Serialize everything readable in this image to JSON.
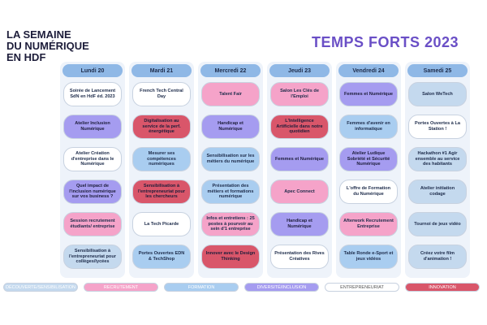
{
  "header": {
    "title_lines": [
      "LA SEMAINE",
      "DU NUMÉRIQUE",
      "EN HDF"
    ],
    "subtitle": "TEMPS FORTS 2023"
  },
  "days": [
    {
      "label": "Lundi 20",
      "events": [
        {
          "text": "Soirée de Lancement SdN en HdF éd. 2023",
          "color": "#ffffff"
        },
        {
          "text": "Atelier Inclusion Numérique",
          "color": "#a59cf0"
        },
        {
          "text": "Atelier Création d'entreprise dans le Numérique",
          "color": "#ffffff"
        },
        {
          "text": "Quel impact de l'inclusion numérique sur vos business ?",
          "color": "#a59cf0"
        },
        {
          "text": "Session recrutement étudiants/ entreprise",
          "color": "#f5a3c9"
        },
        {
          "text": "Sensibilisation à l'entrepreneuriat pour collèges/lycées",
          "color": "#c4d9ee"
        }
      ]
    },
    {
      "label": "Mardi 21",
      "events": [
        {
          "text": "French Tech Central Day",
          "color": "#ffffff"
        },
        {
          "text": "Digitalisation au service de la perf. énergétique",
          "color": "#d9566a"
        },
        {
          "text": "Mesurer ses compétences numériques",
          "color": "#a9cdf0"
        },
        {
          "text": "Sensibilisation à l'entrepreneuriat pour les chercheurs",
          "color": "#d9566a"
        },
        {
          "text": "La Tech Picarde",
          "color": "#ffffff"
        },
        {
          "text": "Portes Ouvertes EDN & TechShop",
          "color": "#a9cdf0"
        }
      ]
    },
    {
      "label": "Mercredi 22",
      "events": [
        {
          "text": "Talent Fair",
          "color": "#f5a3c9"
        },
        {
          "text": "Handicap et Numérique",
          "color": "#a59cf0"
        },
        {
          "text": "Sensibilisation sur les métiers du numérique",
          "color": "#a9cdf0"
        },
        {
          "text": "Présentation des métiers et formations numérique",
          "color": "#a9cdf0"
        },
        {
          "text": "Infos et entretiens : 25 postes à pourvoir au sein d'1 entreprise",
          "color": "#f5a3c9"
        },
        {
          "text": "Innover avec le Design Thinking",
          "color": "#d9566a"
        }
      ]
    },
    {
      "label": "Jeudi 23",
      "events": [
        {
          "text": "Salon Les Clés de l'Emploi",
          "color": "#f5a3c9"
        },
        {
          "text": "L'Intelligence Artificielle dans notre quotidien",
          "color": "#d9566a"
        },
        {
          "text": "Femmes et Numérique",
          "color": "#a59cf0"
        },
        {
          "text": "Apec Connect",
          "color": "#f5a3c9"
        },
        {
          "text": "Handicap et Numérique",
          "color": "#a59cf0"
        },
        {
          "text": "Présentation des Rives Créatives",
          "color": "#ffffff"
        }
      ]
    },
    {
      "label": "Vendredi 24",
      "events": [
        {
          "text": "Femmes et Numérique",
          "color": "#a59cf0"
        },
        {
          "text": "Femmes d'avenir en informatique",
          "color": "#a9cdf0"
        },
        {
          "text": "Atelier Ludique Sobriété et Sécurité Numérique",
          "color": "#a59cf0"
        },
        {
          "text": "L'offre de Formation du Numérique",
          "color": "#ffffff"
        },
        {
          "text": "Afterwork Recrutement Entreprise",
          "color": "#f5a3c9"
        },
        {
          "text": "Table Ronde e-Sport et jeux vidéos",
          "color": "#a9cdf0"
        }
      ]
    },
    {
      "label": "Samedi 25",
      "events": [
        {
          "text": "Salon WeTech",
          "color": "#c4d9ee"
        },
        {
          "text": "Portes Ouvertes à La Station !",
          "color": "#ffffff"
        },
        {
          "text": "Hackathon #1 Agir ensemble au service des habitants",
          "color": "#c4d9ee"
        },
        {
          "text": "Atelier initiation codage",
          "color": "#c4d9ee"
        },
        {
          "text": "Tournoi de jeux vidéo",
          "color": "#c4d9ee"
        },
        {
          "text": "Créez votre film d'animation !",
          "color": "#c4d9ee"
        }
      ]
    }
  ],
  "legend": [
    {
      "label": "DÉCOUVERTE/SENSIBILISATION",
      "color": "#c4d9ee"
    },
    {
      "label": "RECRUTEMENT",
      "color": "#f5a3c9"
    },
    {
      "label": "FORMATION",
      "color": "#a9cdf0"
    },
    {
      "label": "DIVERSITÉ/INCLUSION",
      "color": "#a59cf0"
    },
    {
      "label": "ENTREPRENEURIAT",
      "color": "#ffffff"
    },
    {
      "label": "INNOVATION",
      "color": "#d9566a"
    }
  ]
}
